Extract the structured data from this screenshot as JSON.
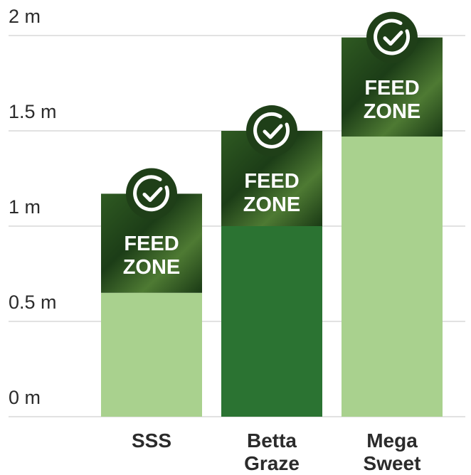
{
  "chart_data": {
    "type": "stacked-bar",
    "categories": [
      "SSS",
      "Betta Graze",
      "Mega Sweet"
    ],
    "series": [
      {
        "colors": [
          "#a9d18e",
          "#2b7332",
          "#a9d18e"
        ],
        "values": [
          0.65,
          1.0,
          1.47
        ]
      },
      {
        "name": "FEED ZONE",
        "color": "#1f4d1c",
        "values": [
          0.52,
          0.5,
          0.52
        ]
      }
    ],
    "ylim": [
      0,
      2
    ],
    "yticks": [
      {
        "value": 0,
        "label": "0 m"
      },
      {
        "value": 0.5,
        "label": "0.5 m"
      },
      {
        "value": 1,
        "label": "1 m"
      },
      {
        "value": 1.5,
        "label": "1.5 m"
      },
      {
        "value": 2,
        "label": "2 m"
      }
    ],
    "grid": true
  }
}
